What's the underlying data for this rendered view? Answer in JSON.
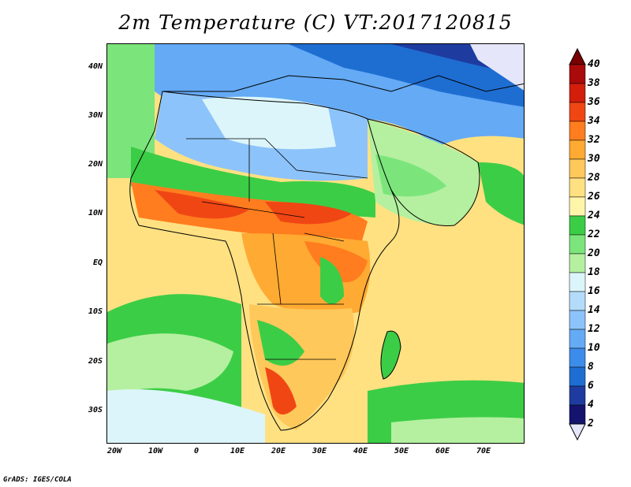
{
  "title": "2m Temperature (C) VT:2017120815",
  "credit": "GrADS: IGES/COLA",
  "lat_labels": [
    "40N",
    "30N",
    "20N",
    "10N",
    "EQ",
    "10S",
    "20S",
    "30S"
  ],
  "lon_labels": [
    "20W",
    "10W",
    "0",
    "10E",
    "20E",
    "30E",
    "40E",
    "50E",
    "60E",
    "70E"
  ],
  "legend": {
    "levels": [
      "2",
      "4",
      "6",
      "8",
      "10",
      "12",
      "14",
      "16",
      "18",
      "20",
      "22",
      "24",
      "26",
      "28",
      "30",
      "32",
      "34",
      "36",
      "38",
      "40"
    ],
    "colors": [
      "#e6e6fa",
      "#14146e",
      "#1e3ca0",
      "#1e6ed2",
      "#3c8ceb",
      "#64aaf5",
      "#8cc3fa",
      "#b4dcfa",
      "#dcf5fa",
      "#b4f0a0",
      "#7be57b",
      "#3ccd46",
      "#fff5aa",
      "#ffe182",
      "#ffc85a",
      "#ffaa32",
      "#ff7d1e",
      "#f04614",
      "#d21e0a",
      "#aa0a0a",
      "#780000"
    ]
  },
  "colors": {
    "ocean_warm": "#ffe182",
    "ocean_cool": "#b4f0a0",
    "hot": "#f04614",
    "cold": "#1e6ed2",
    "border": "#000000"
  }
}
